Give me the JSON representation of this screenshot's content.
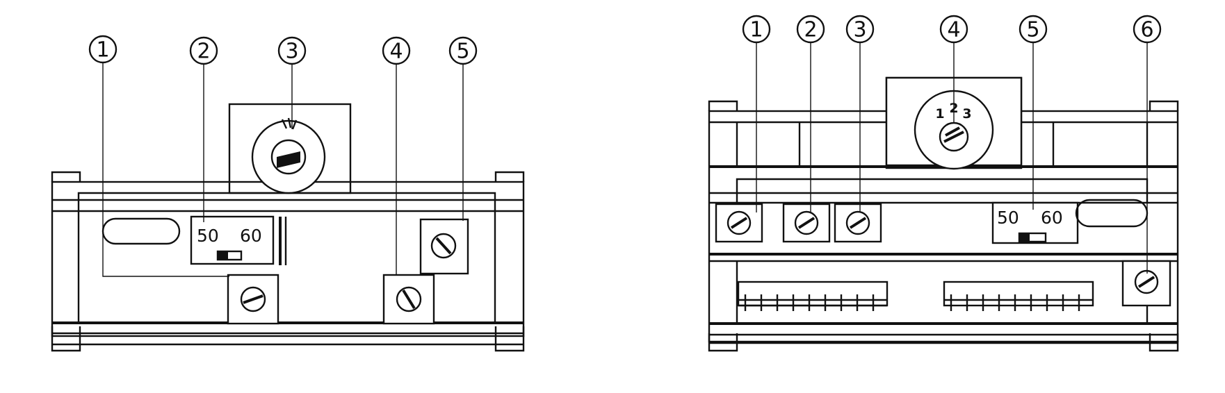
{
  "left_diagram": {
    "callouts": [
      "1",
      "2",
      "3",
      "4",
      "5"
    ],
    "freq_50": "50",
    "freq_60": "60"
  },
  "right_diagram": {
    "callouts": [
      "1",
      "2",
      "3",
      "4",
      "5",
      "6"
    ],
    "freq_50": "50",
    "freq_60": "60",
    "dial_1": "1",
    "dial_2": "2",
    "dial_3": "3"
  }
}
